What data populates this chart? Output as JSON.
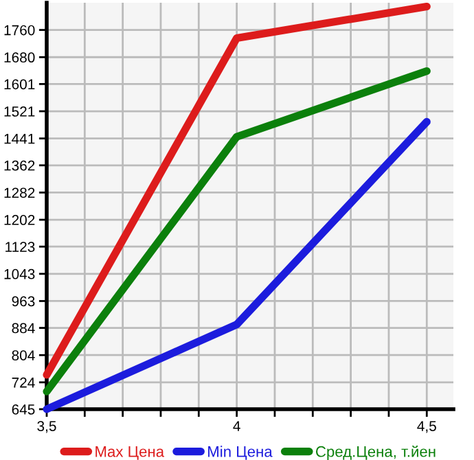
{
  "chart_data": {
    "type": "line",
    "x": [
      3.5,
      4,
      4.5
    ],
    "series": [
      {
        "name": "Max Цена",
        "color": "#dd1c1c",
        "values": [
          746,
          1736,
          1829
        ]
      },
      {
        "name": "Min Цена",
        "color": "#1c1cdd",
        "values": [
          645,
          894,
          1490
        ]
      },
      {
        "name": "Сред.Цена, т.йен",
        "color": "#0c800c",
        "values": [
          697,
          1446,
          1639
        ]
      }
    ],
    "xlim": [
      3.5,
      4.57
    ],
    "ylim": [
      645,
      1840
    ],
    "xticks": [
      {
        "value": 3.5,
        "label": "3,5"
      },
      {
        "value": 3.6,
        "label": null
      },
      {
        "value": 3.7,
        "label": null
      },
      {
        "value": 3.8,
        "label": null
      },
      {
        "value": 3.9,
        "label": null
      },
      {
        "value": 4,
        "label": "4"
      },
      {
        "value": 4.1,
        "label": null
      },
      {
        "value": 4.2,
        "label": null
      },
      {
        "value": 4.3,
        "label": null
      },
      {
        "value": 4.4,
        "label": null
      },
      {
        "value": 4.5,
        "label": "4,5"
      }
    ],
    "yticks": [
      645,
      724,
      804,
      884,
      963,
      1043,
      1123,
      1202,
      1282,
      1362,
      1441,
      1521,
      1601,
      1680,
      1760
    ],
    "grid": true,
    "legend": "bottom",
    "marker": "none",
    "line_style": "solid"
  }
}
